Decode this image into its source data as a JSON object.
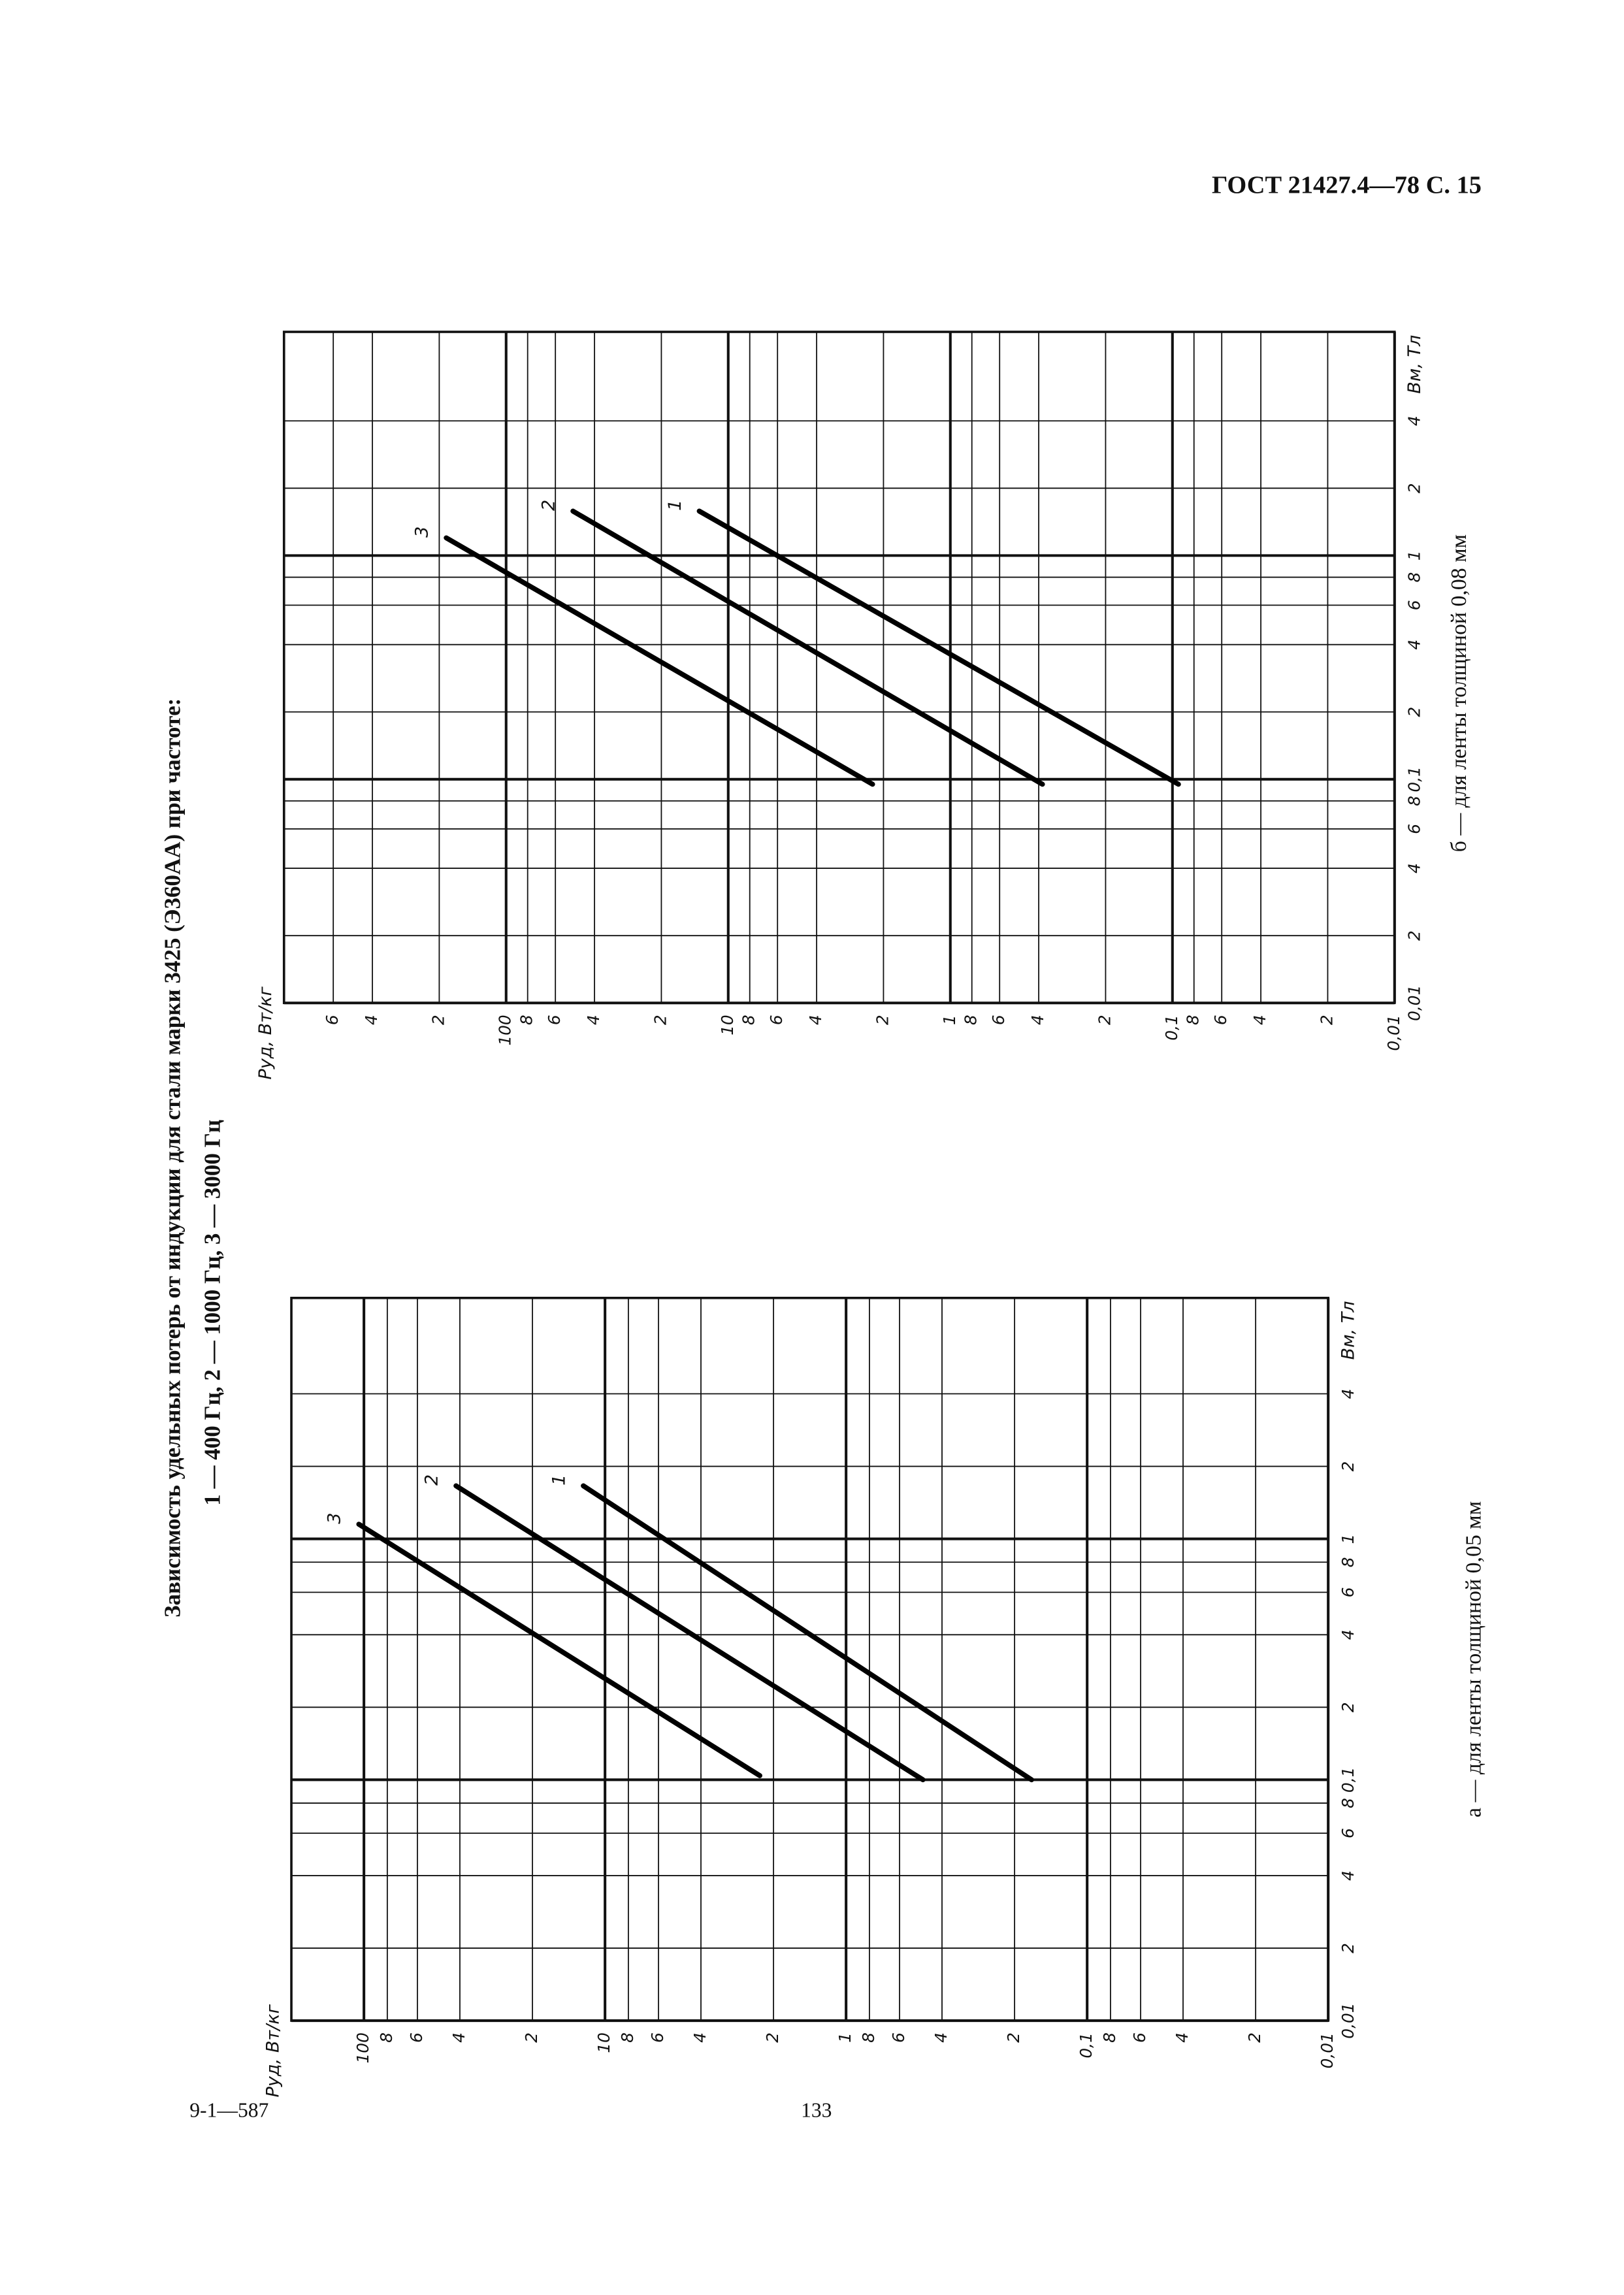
{
  "header": {
    "title": "ГОСТ 21427.4—78 С. 15"
  },
  "figure": {
    "title": "Зависимость удельных потерь от индукции для стали марки 3425 (Э360АА) при частоте:",
    "subtitle": "1 — 400 Гц, 2 — 1000 Гц, 3 — 3000 Гц"
  },
  "chart_data": [
    {
      "type": "line",
      "caption": "а — для ленты толщиной 0,05 мм",
      "xlabel": "Bм, Тл",
      "ylabel": "Pуд, Вт/кг",
      "xscale": "log",
      "yscale": "log",
      "grid": true,
      "xlim": [
        0.01,
        10
      ],
      "ylim": [
        0.01,
        200
      ],
      "xticks": [
        {
          "value": 0.01,
          "label": "0,01"
        },
        {
          "value": 0.02,
          "label": "2"
        },
        {
          "value": 0.04,
          "label": "4"
        },
        {
          "value": 0.06,
          "label": "6"
        },
        {
          "value": 0.08,
          "label": "8"
        },
        {
          "value": 0.1,
          "label": "0,1"
        },
        {
          "value": 0.2,
          "label": "2"
        },
        {
          "value": 0.4,
          "label": "4"
        },
        {
          "value": 0.6,
          "label": "6"
        },
        {
          "value": 0.8,
          "label": "8"
        },
        1,
        2,
        4
      ],
      "yticks": [
        100,
        {
          "value": 80,
          "label": "8"
        },
        {
          "value": 60,
          "label": "6"
        },
        {
          "value": 40,
          "label": "4"
        },
        {
          "value": 20,
          "label": "2"
        },
        10,
        8,
        6,
        4,
        2,
        1,
        {
          "value": 0.8,
          "label": "8"
        },
        {
          "value": 0.6,
          "label": "6"
        },
        {
          "value": 0.4,
          "label": "4"
        },
        {
          "value": 0.2,
          "label": "2"
        },
        {
          "value": 0.1,
          "label": "0,1"
        },
        {
          "value": 0.08,
          "label": "8"
        },
        {
          "value": 0.06,
          "label": "6"
        },
        {
          "value": 0.04,
          "label": "4"
        },
        {
          "value": 0.02,
          "label": "2"
        },
        {
          "value": 0.01,
          "label": "0,01"
        }
      ],
      "series": [
        {
          "name": "1",
          "color": "#000000",
          "x": [
            1.66,
            0.1
          ],
          "values": [
            12.3,
            0.17
          ]
        },
        {
          "name": "2",
          "color": "#000000",
          "x": [
            1.66,
            0.1
          ],
          "values": [
            41.5,
            0.48
          ]
        },
        {
          "name": "3",
          "color": "#000000",
          "x": [
            1.15,
            0.104
          ],
          "values": [
            105,
            2.28
          ]
        }
      ]
    },
    {
      "type": "line",
      "caption": "б — для ленты толщиной 0,08 мм",
      "xlabel": "Bм, Тл",
      "ylabel": "Pуд, Вт/кг",
      "xscale": "log",
      "yscale": "log",
      "grid": true,
      "xlim": [
        0.01,
        10
      ],
      "ylim": [
        0.01,
        1000
      ],
      "xticks": [
        {
          "value": 0.01,
          "label": "0,01"
        },
        {
          "value": 0.02,
          "label": "2"
        },
        {
          "value": 0.04,
          "label": "4"
        },
        {
          "value": 0.06,
          "label": "6"
        },
        {
          "value": 0.08,
          "label": "8"
        },
        {
          "value": 0.1,
          "label": "0,1"
        },
        {
          "value": 0.2,
          "label": "2"
        },
        {
          "value": 0.4,
          "label": "4"
        },
        {
          "value": 0.6,
          "label": "6"
        },
        {
          "value": 0.8,
          "label": "8"
        },
        1,
        2,
        4
      ],
      "yticks": [
        {
          "value": 600,
          "label": "6"
        },
        {
          "value": 400,
          "label": "4"
        },
        {
          "value": 200,
          "label": "2"
        },
        100,
        {
          "value": 80,
          "label": "8"
        },
        {
          "value": 60,
          "label": "6"
        },
        {
          "value": 40,
          "label": "4"
        },
        {
          "value": 20,
          "label": "2"
        },
        10,
        8,
        6,
        4,
        2,
        1,
        {
          "value": 0.8,
          "label": "8"
        },
        {
          "value": 0.6,
          "label": "6"
        },
        {
          "value": 0.4,
          "label": "4"
        },
        {
          "value": 0.2,
          "label": "2"
        },
        {
          "value": 0.1,
          "label": "0,1"
        },
        {
          "value": 0.08,
          "label": "8"
        },
        {
          "value": 0.06,
          "label": "6"
        },
        {
          "value": 0.04,
          "label": "4"
        },
        {
          "value": 0.02,
          "label": "2"
        },
        {
          "value": 0.01,
          "label": "0,01"
        }
      ],
      "series": [
        {
          "name": "1",
          "color": "#000000",
          "x": [
            1.58,
            0.095
          ],
          "values": [
            13.5,
            0.094
          ]
        },
        {
          "name": "2",
          "color": "#000000",
          "x": [
            1.58,
            0.095
          ],
          "values": [
            50,
            0.385
          ]
        },
        {
          "name": "3",
          "color": "#000000",
          "x": [
            1.2,
            0.095
          ],
          "values": [
            186,
            2.24
          ]
        }
      ]
    }
  ],
  "footer": {
    "code": "9-1—587",
    "page": "133"
  }
}
